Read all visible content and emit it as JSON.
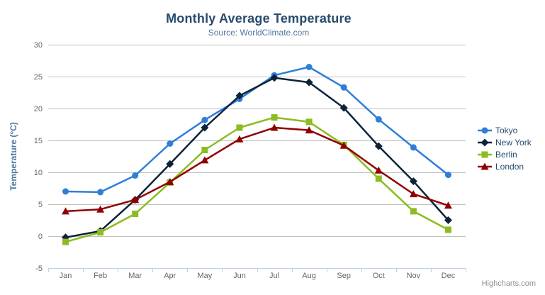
{
  "chart": {
    "title": "Monthly Average Temperature",
    "subtitle": "Source: WorldClimate.com",
    "credits": "Highcharts.com",
    "menu_icon": "hamburger-menu-icon"
  },
  "colors": {
    "title_text": "#274b6d",
    "subtitle_text": "#4d759e",
    "axis_title_text": "#4d759e",
    "tick_label_text": "#666666",
    "grid_line": "#c0c0c0",
    "axis_line": "#c0d0e0",
    "legend_text": "#274b6d",
    "credits_text": "#909090",
    "menu_icon": "#666666"
  },
  "chart_data": {
    "type": "line",
    "title": "Monthly Average Temperature",
    "subtitle": "Source: WorldClimate.com",
    "categories": [
      "Jan",
      "Feb",
      "Mar",
      "Apr",
      "May",
      "Jun",
      "Jul",
      "Aug",
      "Sep",
      "Oct",
      "Nov",
      "Dec"
    ],
    "xlabel": "",
    "ylabel": "Temperature (°C)",
    "ylim": [
      -5,
      30
    ],
    "yticks": [
      -5,
      0,
      5,
      10,
      15,
      20,
      25,
      30
    ],
    "grid": true,
    "legend_position": "right",
    "series": [
      {
        "name": "Tokyo",
        "color": "#2f7ed8",
        "marker": "circle",
        "values": [
          7.0,
          6.9,
          9.5,
          14.5,
          18.2,
          21.5,
          25.2,
          26.5,
          23.3,
          18.3,
          13.9,
          9.6
        ]
      },
      {
        "name": "New York",
        "color": "#0d233a",
        "marker": "diamond",
        "values": [
          -0.2,
          0.8,
          5.7,
          11.3,
          17.0,
          22.0,
          24.8,
          24.1,
          20.1,
          14.1,
          8.6,
          2.5
        ]
      },
      {
        "name": "Berlin",
        "color": "#8bbc21",
        "marker": "square",
        "values": [
          -0.9,
          0.6,
          3.5,
          8.4,
          13.5,
          17.0,
          18.6,
          17.9,
          14.3,
          9.0,
          3.9,
          1.0
        ]
      },
      {
        "name": "London",
        "color": "#910000",
        "marker": "triangle",
        "values": [
          3.9,
          4.2,
          5.7,
          8.5,
          11.9,
          15.2,
          17.0,
          16.6,
          14.2,
          10.3,
          6.6,
          4.8
        ]
      }
    ]
  }
}
